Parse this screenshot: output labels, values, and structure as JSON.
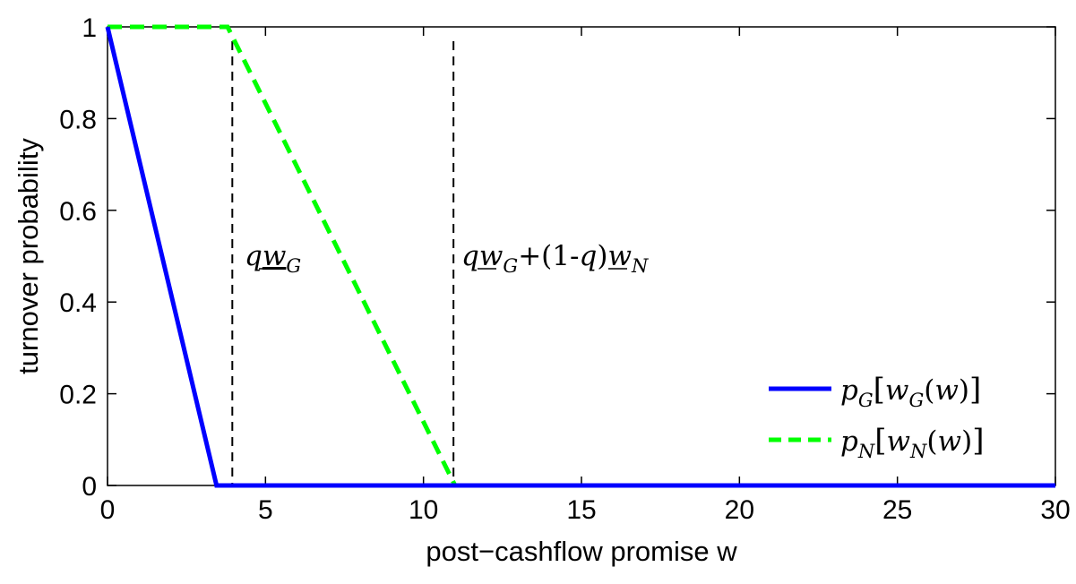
{
  "chart_data": {
    "type": "line",
    "xlabel": "post−cashflow promise w",
    "ylabel": "turnover probability",
    "xlim": [
      0,
      30
    ],
    "ylim": [
      0,
      1
    ],
    "x_ticks": [
      0,
      5,
      10,
      15,
      20,
      25,
      30
    ],
    "y_ticks": [
      0,
      0.2,
      0.4,
      0.6,
      0.8,
      1
    ],
    "x_tick_labels": [
      "0",
      "5",
      "10",
      "15",
      "20",
      "25",
      "30"
    ],
    "y_tick_labels": [
      "0",
      "0.2",
      "0.4",
      "0.6",
      "0.8",
      "1"
    ],
    "grid": false,
    "legend_position": "bottom-right",
    "series": [
      {
        "name": "pG[wG(w)]",
        "color": "#0000ff",
        "style": "solid",
        "points": [
          [
            0,
            1
          ],
          [
            3.45,
            0
          ],
          [
            30,
            0
          ]
        ]
      },
      {
        "name": "pN[wN(w)]",
        "color": "#00ff00",
        "style": "dashed",
        "points": [
          [
            0,
            1
          ],
          [
            3.8,
            1
          ],
          [
            11.0,
            0
          ],
          [
            30,
            0
          ]
        ]
      }
    ],
    "vlines": [
      {
        "x": 3.95,
        "label": "qw_G"
      },
      {
        "x": 10.95,
        "label": "qw_G+(1-q)w_N"
      }
    ]
  }
}
